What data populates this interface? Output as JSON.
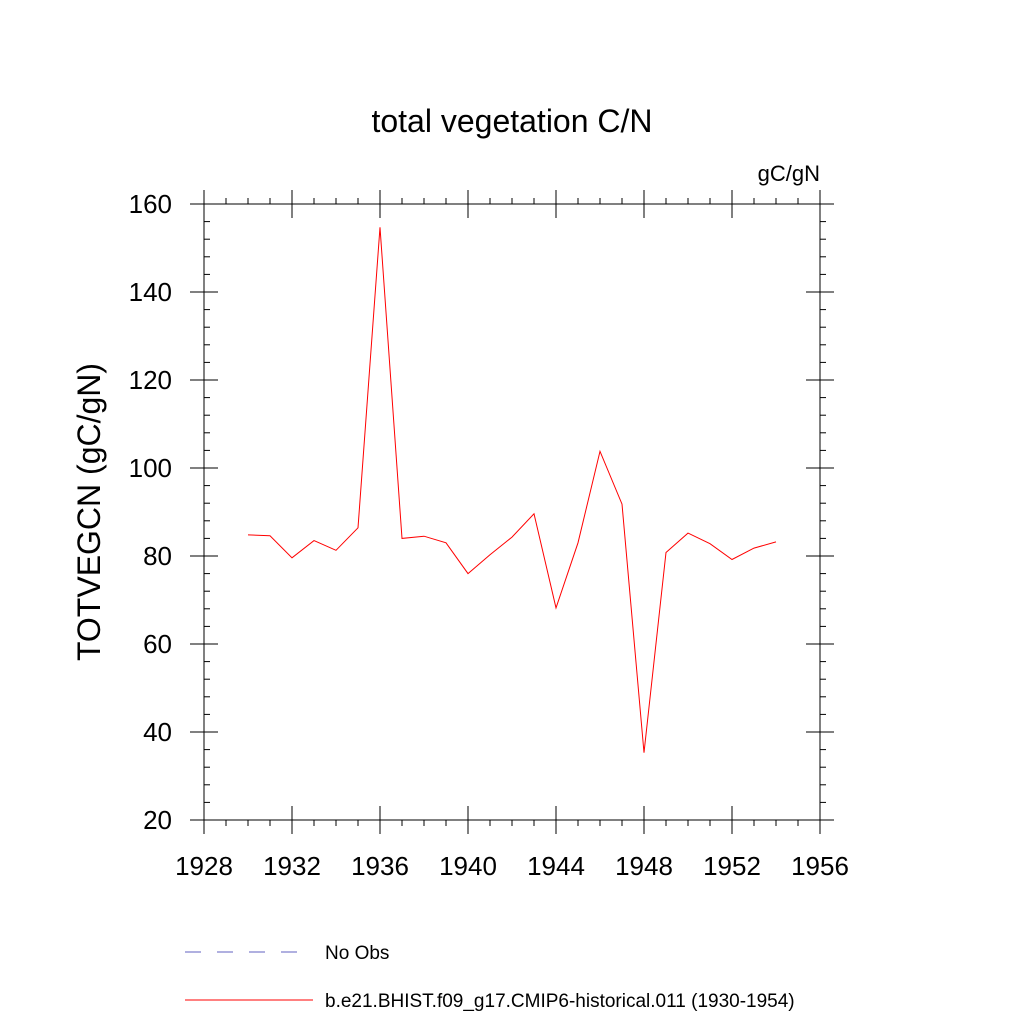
{
  "chart_data": {
    "type": "line",
    "title": "total vegetation C/N",
    "units_label": "gC/gN",
    "ylabel": "TOTVEGCN  (gC/gN)",
    "xlabel": "",
    "xlim": [
      1928,
      1956
    ],
    "ylim": [
      20,
      160
    ],
    "x_major_ticks": [
      1928,
      1932,
      1936,
      1940,
      1944,
      1948,
      1952,
      1956
    ],
    "x_minor_step": 1,
    "y_major_ticks": [
      20,
      40,
      60,
      80,
      100,
      120,
      140,
      160
    ],
    "y_minor_step": 4,
    "grid": false,
    "legend_position": "bottom",
    "series": [
      {
        "name": "b.e21.BHIST.f09_g17.CMIP6-historical.011 (1930-1954)",
        "color": "#ff0000",
        "dash": "solid",
        "x": [
          1930,
          1931,
          1932,
          1933,
          1934,
          1935,
          1936,
          1937,
          1938,
          1939,
          1940,
          1941,
          1942,
          1943,
          1944,
          1945,
          1946,
          1947,
          1948,
          1949,
          1950,
          1951,
          1952,
          1953,
          1954
        ],
        "values": [
          84.8,
          84.6,
          79.6,
          83.5,
          81.3,
          86.4,
          154.7,
          84.0,
          84.5,
          83.0,
          76.0,
          80.3,
          84.3,
          89.6,
          68.2,
          83.0,
          103.8,
          91.8,
          35.3,
          80.8,
          85.2,
          82.8,
          79.2,
          81.8,
          83.2
        ]
      }
    ],
    "legend": [
      {
        "label": "No Obs",
        "color": "#6060c0",
        "dash": "dashed"
      },
      {
        "label": "b.e21.BHIST.f09_g17.CMIP6-historical.011 (1930-1954)",
        "color": "#ff0000",
        "dash": "solid"
      }
    ]
  }
}
